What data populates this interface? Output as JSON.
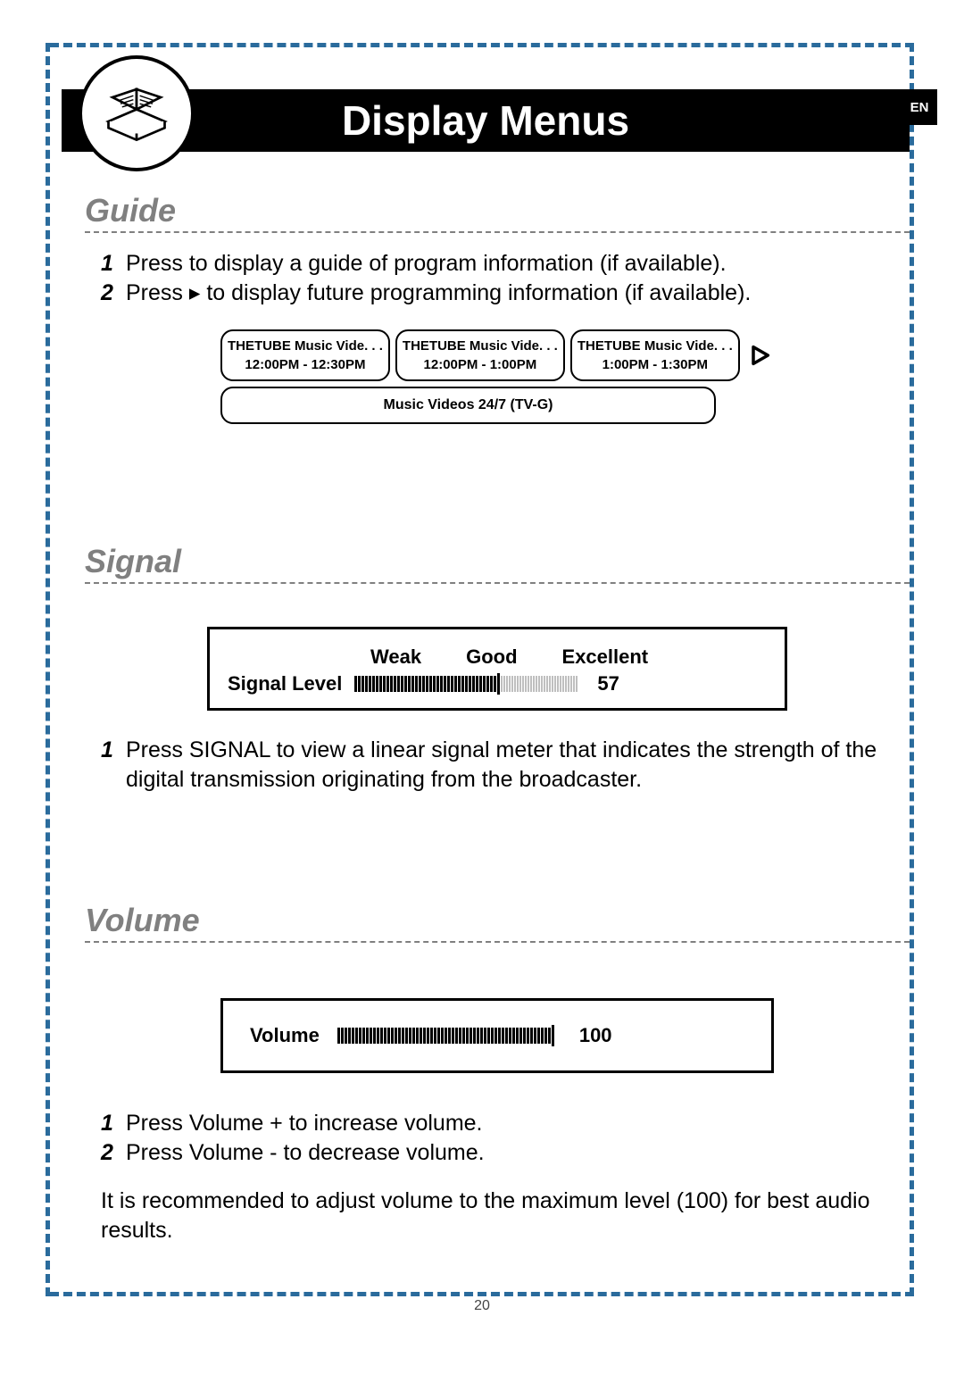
{
  "page": {
    "language_tab": "EN",
    "title": "Display Menus",
    "page_number": "20"
  },
  "guide": {
    "heading": "Guide",
    "steps": [
      {
        "num": "1",
        "text": "Press to display a guide of program information (if available)."
      },
      {
        "num": "2",
        "text": "Press ▸ to display future programming information (if available)."
      }
    ],
    "cards": [
      {
        "title": "THETUBE Music Vide. . .",
        "time": "12:00PM - 12:30PM"
      },
      {
        "title": "THETUBE Music Vide. . .",
        "time": "12:00PM - 1:00PM"
      },
      {
        "title": "THETUBE Music Vide. . .",
        "time": "1:00PM - 1:30PM"
      }
    ],
    "description": "Music Videos 24/7 (TV-G)"
  },
  "signal": {
    "heading": "Signal",
    "scale_labels": [
      "Weak",
      "Good",
      "Excellent"
    ],
    "label": "Signal Level",
    "value": "57",
    "fill_ratio": 0.57,
    "steps": [
      {
        "num": "1",
        "text": "Press SIGNAL to view a linear signal meter that indicates the strength of the digital transmission originating from the broadcaster."
      }
    ]
  },
  "volume": {
    "heading": "Volume",
    "label": "Volume",
    "value": "100",
    "fill_ratio": 1.0,
    "steps": [
      {
        "num": "1",
        "text": "Press Volume  +  to increase volume."
      },
      {
        "num": "2",
        "text": "Press Volume  -  to decrease volume."
      }
    ],
    "note": "It is recommended to adjust volume to the maximum level (100) for best audio results."
  },
  "style": {
    "accent_color": "#2a6b9c",
    "section_title_color": "#808080",
    "signal_ticks_total": 70,
    "volume_ticks_total": 60
  }
}
